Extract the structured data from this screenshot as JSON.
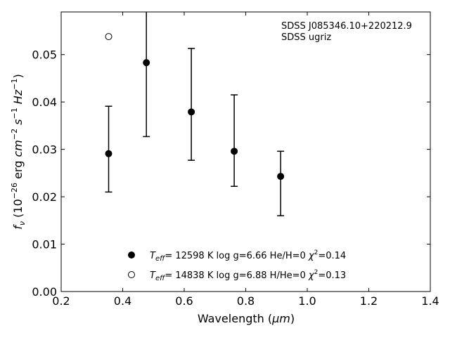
{
  "chart_data": {
    "type": "scatter",
    "title": "",
    "xlabel_main": "Wavelength (",
    "xlabel_unit": "μm",
    "xlabel_close": ")",
    "ylabel_prefix": "f",
    "ylabel_sub": "ν",
    "ylabel_mid": " (10",
    "ylabel_exp1": "−26",
    "ylabel_cgs": " erg ",
    "ylabel_cm": "cm",
    "ylabel_exp2": "−2",
    "ylabel_s": " s",
    "ylabel_exp3": "−1",
    "ylabel_hz": " Hz",
    "ylabel_exp4": "−1",
    "ylabel_close": ")",
    "xlim": [
      0.2,
      1.4
    ],
    "ylim": [
      0.0,
      0.059
    ],
    "x_ticks": [
      0.2,
      0.4,
      0.6,
      0.8,
      1.0,
      1.2,
      1.4
    ],
    "x_tick_labels": [
      "0.2",
      "0.4",
      "0.6",
      "0.8",
      "1.0",
      "1.2",
      "1.4"
    ],
    "y_ticks": [
      0.0,
      0.01,
      0.02,
      0.03,
      0.04,
      0.05
    ],
    "y_tick_labels": [
      "0.00",
      "0.01",
      "0.02",
      "0.03",
      "0.04",
      "0.05"
    ],
    "grid": false,
    "annotations": [
      "SDSS J085346.10+220212.9",
      "SDSS ugriz"
    ],
    "observed": {
      "x": [
        0.3543,
        0.477,
        0.6231,
        0.7625,
        0.9134
      ],
      "y": [
        0.0291,
        0.0483,
        0.0379,
        0.0296,
        0.0243
      ],
      "yerr_low": [
        0.0081,
        0.0156,
        0.0102,
        0.0074,
        0.0083
      ],
      "yerr_high": [
        0.01,
        0.011,
        0.0134,
        0.0119,
        0.0053
      ]
    },
    "series": [
      {
        "name_prefix": "T",
        "name_sub": "eff",
        "name_rest": "= 12598 K  log g=6.66  He/H=0  ",
        "name_chi": "χ",
        "name_chi_exp": "2",
        "name_chi_val": "=0.14",
        "marker": "filled-circle",
        "x": [
          0.3543,
          0.477,
          0.6231,
          0.7625,
          0.9134
        ],
        "y": [
          0.0291,
          0.0483,
          0.0379,
          0.0296,
          0.0243
        ]
      },
      {
        "name_prefix": "T",
        "name_sub": "eff",
        "name_rest": "= 14838 K  log g=6.88  H/He=0  ",
        "name_chi": "χ",
        "name_chi_exp": "2",
        "name_chi_val": "=0.13",
        "marker": "open-circle",
        "x": [
          0.3543
        ],
        "y": [
          0.0538
        ]
      }
    ],
    "legend_position": "bottom-center",
    "colors": {
      "marker": "#000000",
      "axes": "#000000",
      "background": "#ffffff"
    }
  }
}
